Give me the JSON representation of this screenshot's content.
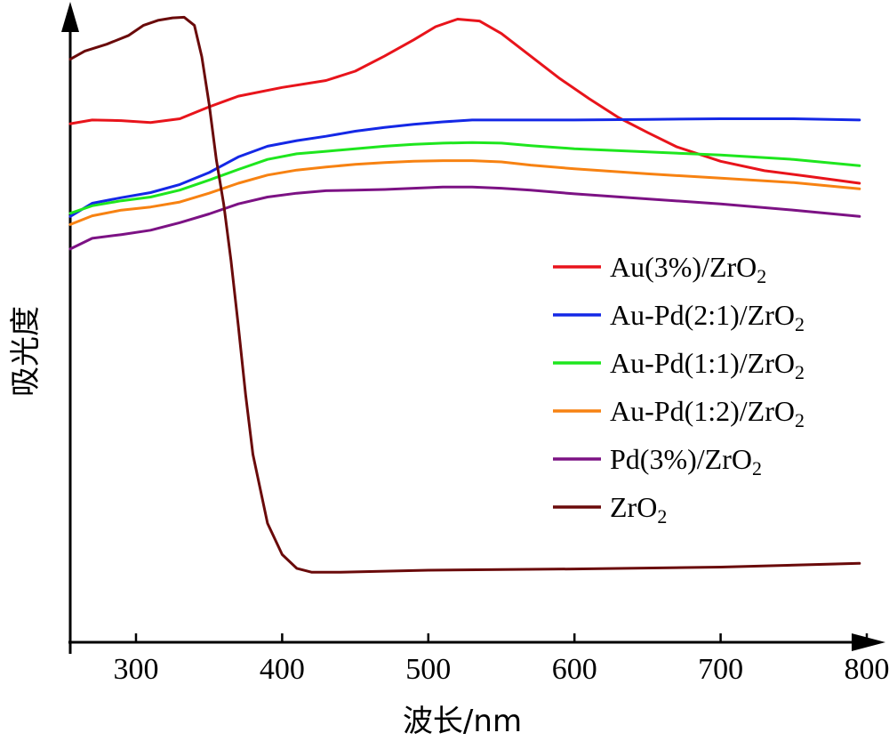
{
  "chart_data": {
    "type": "line",
    "xlabel": "波长/nm",
    "ylabel": "吸光度",
    "xlim": [
      255,
      800
    ],
    "ylim": [
      0,
      1
    ],
    "xticks": [
      300,
      400,
      500,
      600,
      700,
      800
    ],
    "yticks_shown": false,
    "grid": false,
    "legend_position": "middle-right",
    "series": [
      {
        "name": "Au(3%)/ZrO2",
        "name_main": "Au(3%)/ZrO",
        "name_sub": "2",
        "color": "#e8141b",
        "x": [
          255,
          270,
          290,
          310,
          330,
          350,
          370,
          400,
          430,
          450,
          470,
          490,
          505,
          520,
          535,
          550,
          570,
          590,
          610,
          630,
          650,
          670,
          700,
          730,
          760,
          795
        ],
        "y": [
          0.828,
          0.834,
          0.833,
          0.83,
          0.836,
          0.855,
          0.872,
          0.886,
          0.897,
          0.912,
          0.936,
          0.962,
          0.983,
          0.995,
          0.992,
          0.972,
          0.936,
          0.9,
          0.868,
          0.838,
          0.814,
          0.791,
          0.768,
          0.753,
          0.744,
          0.733
        ]
      },
      {
        "name": "Au-Pd(2:1)/ZrO2",
        "name_main": "Au-Pd(2:1)/ZrO",
        "name_sub": "2",
        "color": "#1428e6",
        "x": [
          255,
          270,
          290,
          310,
          330,
          350,
          370,
          390,
          410,
          430,
          450,
          470,
          490,
          510,
          530,
          550,
          600,
          650,
          700,
          750,
          795
        ],
        "y": [
          0.68,
          0.701,
          0.71,
          0.718,
          0.731,
          0.75,
          0.775,
          0.792,
          0.801,
          0.808,
          0.816,
          0.822,
          0.827,
          0.831,
          0.834,
          0.834,
          0.834,
          0.835,
          0.836,
          0.836,
          0.834
        ]
      },
      {
        "name": "Au-Pd(1:1)/ZrO2",
        "name_main": "Au-Pd(1:1)/ZrO",
        "name_sub": "2",
        "color": "#1ee61e",
        "x": [
          255,
          270,
          290,
          310,
          330,
          350,
          370,
          390,
          410,
          430,
          450,
          470,
          490,
          510,
          530,
          550,
          570,
          600,
          650,
          700,
          750,
          795
        ],
        "y": [
          0.685,
          0.697,
          0.705,
          0.711,
          0.722,
          0.738,
          0.755,
          0.771,
          0.78,
          0.784,
          0.788,
          0.792,
          0.795,
          0.797,
          0.798,
          0.797,
          0.793,
          0.788,
          0.783,
          0.778,
          0.771,
          0.761
        ]
      },
      {
        "name": "Au-Pd(1:2)/ZrO2",
        "name_main": "Au-Pd(1:2)/ZrO",
        "name_sub": "2",
        "color": "#f78212",
        "x": [
          255,
          270,
          290,
          310,
          330,
          350,
          370,
          390,
          410,
          430,
          450,
          470,
          490,
          510,
          530,
          550,
          570,
          600,
          650,
          700,
          750,
          795
        ],
        "y": [
          0.667,
          0.681,
          0.69,
          0.695,
          0.703,
          0.717,
          0.733,
          0.746,
          0.754,
          0.759,
          0.763,
          0.766,
          0.768,
          0.769,
          0.769,
          0.767,
          0.762,
          0.756,
          0.748,
          0.741,
          0.734,
          0.724
        ]
      },
      {
        "name": "Pd(3%)/ZrO2",
        "name_main": "Pd(3%)/ZrO",
        "name_sub": "2",
        "color": "#7c1284",
        "x": [
          255,
          270,
          290,
          310,
          330,
          350,
          370,
          390,
          410,
          430,
          450,
          470,
          490,
          510,
          530,
          550,
          570,
          600,
          650,
          700,
          750,
          795
        ],
        "y": [
          0.628,
          0.645,
          0.651,
          0.658,
          0.67,
          0.684,
          0.7,
          0.711,
          0.717,
          0.721,
          0.722,
          0.723,
          0.725,
          0.727,
          0.727,
          0.725,
          0.722,
          0.716,
          0.708,
          0.7,
          0.69,
          0.68
        ]
      },
      {
        "name": "ZrO2",
        "name_main": "ZrO",
        "name_sub": "2",
        "color": "#6a0a0a",
        "x": [
          255,
          265,
          280,
          295,
          305,
          315,
          325,
          333,
          340,
          345,
          350,
          355,
          360,
          365,
          370,
          375,
          380,
          390,
          400,
          410,
          420,
          440,
          500,
          600,
          700,
          795
        ],
        "y": [
          0.931,
          0.944,
          0.955,
          0.969,
          0.985,
          0.993,
          0.997,
          0.998,
          0.985,
          0.935,
          0.86,
          0.77,
          0.7,
          0.61,
          0.505,
          0.395,
          0.3,
          0.19,
          0.14,
          0.118,
          0.112,
          0.112,
          0.115,
          0.117,
          0.12,
          0.126
        ]
      }
    ]
  }
}
